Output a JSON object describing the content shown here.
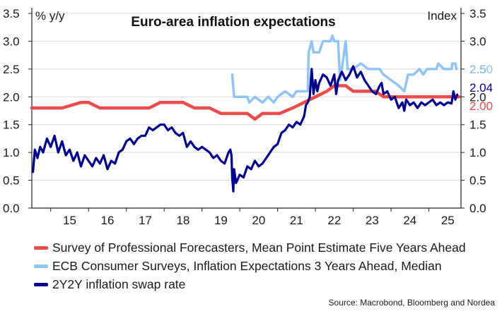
{
  "chart_data": {
    "type": "line",
    "title": "Euro-area inflation expectations",
    "ylabel_left": "% y/y",
    "ylabel_right": "Index",
    "ylim": [
      0,
      3.5
    ],
    "yticks": [
      "0.0",
      "0.5",
      "1.0",
      "1.5",
      "2.0",
      "2.5",
      "3.0",
      "3.5"
    ],
    "xlim": [
      2014.5,
      2025.85
    ],
    "xtick_labels": [
      "15",
      "16",
      "17",
      "18",
      "19",
      "20",
      "21",
      "22",
      "23",
      "24",
      "25"
    ],
    "end_labels": [
      {
        "text": "2.50",
        "value": 2.5,
        "color": "#8fc4f5"
      },
      {
        "text": "2.04",
        "value": 2.04,
        "color": "#00008f"
      },
      {
        "text": "2.00",
        "value": 2.0,
        "color": "#ec4b4b"
      }
    ],
    "series": [
      {
        "name": "Survey of Professional Forecasters, Mean Point Estimate Five Years Ahead",
        "color": "#ec4b4b",
        "points": [
          [
            2014.5,
            1.8
          ],
          [
            2015.3,
            1.8
          ],
          [
            2015.8,
            1.9
          ],
          [
            2016.0,
            1.9
          ],
          [
            2016.3,
            1.8
          ],
          [
            2017.6,
            1.8
          ],
          [
            2017.9,
            1.9
          ],
          [
            2018.5,
            1.9
          ],
          [
            2018.8,
            1.8
          ],
          [
            2019.2,
            1.8
          ],
          [
            2019.5,
            1.7
          ],
          [
            2020.2,
            1.7
          ],
          [
            2020.4,
            1.6
          ],
          [
            2020.6,
            1.7
          ],
          [
            2021.05,
            1.7
          ],
          [
            2021.4,
            1.8
          ],
          [
            2021.7,
            1.9
          ],
          [
            2022.0,
            2.0
          ],
          [
            2022.3,
            2.1
          ],
          [
            2022.5,
            2.2
          ],
          [
            2022.8,
            2.2
          ],
          [
            2023.0,
            2.1
          ],
          [
            2023.6,
            2.1
          ],
          [
            2023.8,
            2.0
          ],
          [
            2025.8,
            2.0
          ]
        ]
      },
      {
        "name": "ECB Consumer Surveys, Inflation Expectations 3 Years Ahead, Median",
        "color": "#8fc4f5",
        "points": [
          [
            2019.8,
            2.4
          ],
          [
            2019.85,
            2.0
          ],
          [
            2020.2,
            2.0
          ],
          [
            2020.25,
            1.9
          ],
          [
            2020.4,
            2.0
          ],
          [
            2020.6,
            1.9
          ],
          [
            2020.75,
            2.0
          ],
          [
            2020.9,
            1.9
          ],
          [
            2021.0,
            2.0
          ],
          [
            2021.2,
            2.1
          ],
          [
            2021.4,
            2.0
          ],
          [
            2021.5,
            2.1
          ],
          [
            2021.8,
            2.1
          ],
          [
            2021.82,
            2.8
          ],
          [
            2021.9,
            3.0
          ],
          [
            2021.95,
            2.8
          ],
          [
            2022.1,
            2.8
          ],
          [
            2022.2,
            3.0
          ],
          [
            2022.4,
            3.0
          ],
          [
            2022.45,
            3.1
          ],
          [
            2022.5,
            3.0
          ],
          [
            2022.6,
            3.0
          ],
          [
            2022.65,
            2.3
          ],
          [
            2022.7,
            2.5
          ],
          [
            2022.8,
            3.0
          ],
          [
            2022.85,
            2.5
          ],
          [
            2023.0,
            2.5
          ],
          [
            2023.2,
            2.6
          ],
          [
            2023.4,
            2.5
          ],
          [
            2023.7,
            2.5
          ],
          [
            2023.8,
            2.4
          ],
          [
            2024.0,
            2.3
          ],
          [
            2024.2,
            2.2
          ],
          [
            2024.35,
            2.1
          ],
          [
            2024.45,
            2.4
          ],
          [
            2024.6,
            2.4
          ],
          [
            2024.75,
            2.5
          ],
          [
            2024.85,
            2.4
          ],
          [
            2024.95,
            2.5
          ],
          [
            2025.2,
            2.5
          ],
          [
            2025.25,
            2.6
          ],
          [
            2025.4,
            2.5
          ],
          [
            2025.6,
            2.5
          ],
          [
            2025.62,
            2.6
          ],
          [
            2025.7,
            2.6
          ],
          [
            2025.73,
            2.5
          ]
        ]
      },
      {
        "name": "2Y2Y inflation swap rate",
        "color": "#00008f",
        "points": [
          [
            2014.53,
            0.65
          ],
          [
            2014.58,
            1.05
          ],
          [
            2014.65,
            0.9
          ],
          [
            2014.72,
            1.1
          ],
          [
            2014.8,
            1.0
          ],
          [
            2014.9,
            1.25
          ],
          [
            2015.0,
            1.1
          ],
          [
            2015.1,
            1.3
          ],
          [
            2015.2,
            1.0
          ],
          [
            2015.3,
            1.2
          ],
          [
            2015.4,
            0.95
          ],
          [
            2015.5,
            1.05
          ],
          [
            2015.6,
            0.85
          ],
          [
            2015.7,
            1.0
          ],
          [
            2015.8,
            0.75
          ],
          [
            2015.9,
            0.95
          ],
          [
            2016.0,
            0.85
          ],
          [
            2016.1,
            0.75
          ],
          [
            2016.2,
            0.9
          ],
          [
            2016.3,
            0.8
          ],
          [
            2016.4,
            0.95
          ],
          [
            2016.5,
            0.7
          ],
          [
            2016.6,
            0.85
          ],
          [
            2016.7,
            0.8
          ],
          [
            2016.8,
            1.0
          ],
          [
            2016.9,
            1.05
          ],
          [
            2017.0,
            1.2
          ],
          [
            2017.1,
            1.25
          ],
          [
            2017.2,
            1.15
          ],
          [
            2017.3,
            1.25
          ],
          [
            2017.4,
            1.3
          ],
          [
            2017.5,
            1.3
          ],
          [
            2017.6,
            1.45
          ],
          [
            2017.7,
            1.4
          ],
          [
            2017.8,
            1.45
          ],
          [
            2017.9,
            1.5
          ],
          [
            2018.0,
            1.5
          ],
          [
            2018.1,
            1.4
          ],
          [
            2018.2,
            1.45
          ],
          [
            2018.3,
            1.35
          ],
          [
            2018.4,
            1.3
          ],
          [
            2018.5,
            1.35
          ],
          [
            2018.6,
            1.1
          ],
          [
            2018.7,
            1.2
          ],
          [
            2018.8,
            1.1
          ],
          [
            2018.9,
            1.05
          ],
          [
            2019.0,
            1.1
          ],
          [
            2019.1,
            1.05
          ],
          [
            2019.2,
            1.0
          ],
          [
            2019.3,
            0.9
          ],
          [
            2019.4,
            0.95
          ],
          [
            2019.5,
            0.85
          ],
          [
            2019.6,
            0.8
          ],
          [
            2019.65,
            0.9
          ],
          [
            2019.7,
            1.0
          ],
          [
            2019.75,
            1.05
          ],
          [
            2019.78,
            0.95
          ],
          [
            2019.8,
            0.55
          ],
          [
            2019.83,
            0.3
          ],
          [
            2019.85,
            0.7
          ],
          [
            2019.9,
            0.45
          ],
          [
            2020.0,
            0.6
          ],
          [
            2020.1,
            0.55
          ],
          [
            2020.2,
            0.75
          ],
          [
            2020.3,
            0.7
          ],
          [
            2020.4,
            0.85
          ],
          [
            2020.5,
            0.75
          ],
          [
            2020.6,
            0.8
          ],
          [
            2020.7,
            0.9
          ],
          [
            2020.8,
            1.0
          ],
          [
            2020.9,
            1.1
          ],
          [
            2021.0,
            1.15
          ],
          [
            2021.1,
            1.35
          ],
          [
            2021.2,
            1.4
          ],
          [
            2021.3,
            1.5
          ],
          [
            2021.4,
            1.45
          ],
          [
            2021.5,
            1.55
          ],
          [
            2021.6,
            1.5
          ],
          [
            2021.7,
            1.65
          ],
          [
            2021.75,
            1.85
          ],
          [
            2021.8,
            1.9
          ],
          [
            2021.85,
            2.0
          ],
          [
            2021.9,
            2.5
          ],
          [
            2021.95,
            2.05
          ],
          [
            2022.0,
            2.3
          ],
          [
            2022.05,
            2.1
          ],
          [
            2022.1,
            2.25
          ],
          [
            2022.2,
            2.4
          ],
          [
            2022.3,
            2.35
          ],
          [
            2022.4,
            2.2
          ],
          [
            2022.5,
            2.4
          ],
          [
            2022.55,
            2.05
          ],
          [
            2022.6,
            2.3
          ],
          [
            2022.7,
            2.45
          ],
          [
            2022.8,
            2.3
          ],
          [
            2022.9,
            2.4
          ],
          [
            2023.0,
            2.55
          ],
          [
            2023.1,
            2.35
          ],
          [
            2023.2,
            2.45
          ],
          [
            2023.3,
            2.3
          ],
          [
            2023.4,
            2.2
          ],
          [
            2023.5,
            2.1
          ],
          [
            2023.6,
            2.05
          ],
          [
            2023.7,
            2.2
          ],
          [
            2023.75,
            2.25
          ],
          [
            2023.8,
            2.05
          ],
          [
            2023.9,
            2.1
          ],
          [
            2024.0,
            1.95
          ],
          [
            2024.1,
            2.0
          ],
          [
            2024.2,
            1.8
          ],
          [
            2024.3,
            1.9
          ],
          [
            2024.35,
            1.75
          ],
          [
            2024.4,
            1.95
          ],
          [
            2024.5,
            1.85
          ],
          [
            2024.6,
            1.9
          ],
          [
            2024.7,
            1.8
          ],
          [
            2024.8,
            1.9
          ],
          [
            2024.9,
            1.85
          ],
          [
            2025.0,
            1.9
          ],
          [
            2025.1,
            1.95
          ],
          [
            2025.2,
            1.85
          ],
          [
            2025.3,
            1.9
          ],
          [
            2025.4,
            1.85
          ],
          [
            2025.5,
            1.9
          ],
          [
            2025.6,
            1.88
          ],
          [
            2025.65,
            2.1
          ],
          [
            2025.7,
            1.95
          ],
          [
            2025.75,
            2.04
          ]
        ]
      }
    ],
    "source": "Source: Macrobond, Bloomberg and Nordea"
  }
}
